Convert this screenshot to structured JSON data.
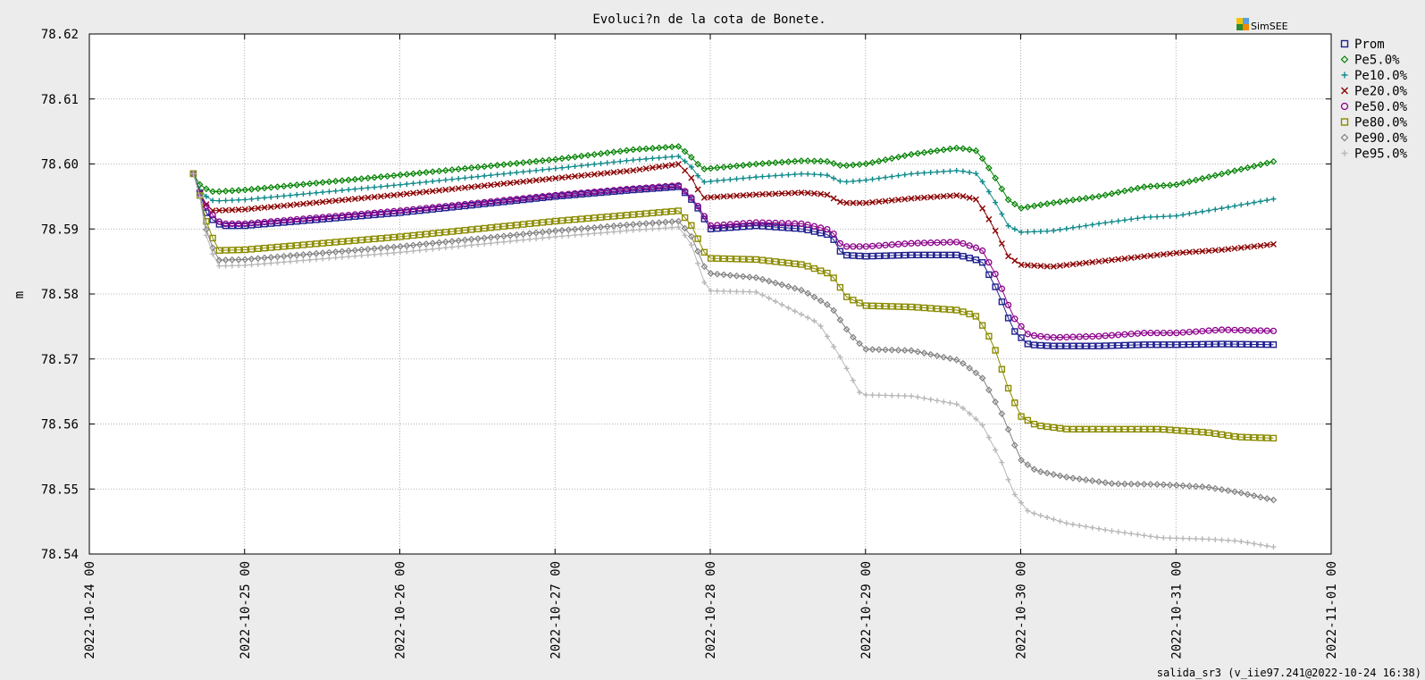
{
  "chart_data": {
    "type": "line",
    "title": "Evoluci?n de la cota de Bonete.",
    "ylabel": "m",
    "xlabel": "",
    "ylim": [
      78.54,
      78.62
    ],
    "yticks": [
      "78.62",
      "78.61",
      "78.60",
      "78.59",
      "78.58",
      "78.57",
      "78.56",
      "78.55",
      "78.54"
    ],
    "x_start": "2022-10-24 00",
    "x_ticks": [
      "2022-10-24 00",
      "2022-10-25 00",
      "2022-10-26 00",
      "2022-10-27 00",
      "2022-10-28 00",
      "2022-10-29 00",
      "2022-10-30 00",
      "2022-10-31 00",
      "2022-11-01 00"
    ],
    "xlim_days": [
      0,
      8
    ],
    "grid": true,
    "legend_position": "right",
    "brand": "SimSEE",
    "footer": "salida_sr3 (v_iie97.241@2022-10-24 16:38)",
    "series": [
      {
        "name": "Prom",
        "color": "#1f1f8f",
        "marker": "square",
        "points": [
          [
            0.67,
            78.5985
          ],
          [
            0.72,
            78.595
          ],
          [
            0.76,
            78.592
          ],
          [
            0.85,
            78.5905
          ],
          [
            1.0,
            78.5905
          ],
          [
            2.0,
            78.5925
          ],
          [
            3.0,
            78.595
          ],
          [
            3.5,
            78.596
          ],
          [
            3.8,
            78.5965
          ],
          [
            3.9,
            78.594
          ],
          [
            4.0,
            78.59
          ],
          [
            4.3,
            78.5905
          ],
          [
            4.6,
            78.59
          ],
          [
            4.78,
            78.589
          ],
          [
            4.85,
            78.586
          ],
          [
            5.0,
            78.5858
          ],
          [
            5.3,
            78.586
          ],
          [
            5.6,
            78.586
          ],
          [
            5.75,
            78.585
          ],
          [
            5.85,
            78.5805
          ],
          [
            5.95,
            78.5745
          ],
          [
            6.05,
            78.5722
          ],
          [
            6.2,
            78.572
          ],
          [
            6.5,
            78.572
          ],
          [
            6.8,
            78.5722
          ],
          [
            7.0,
            78.5722
          ],
          [
            7.3,
            78.5723
          ],
          [
            7.65,
            78.5722
          ]
        ]
      },
      {
        "name": "Pe5.0%",
        "color": "#008000",
        "marker": "diamond",
        "points": [
          [
            0.67,
            78.5985
          ],
          [
            0.72,
            78.5965
          ],
          [
            0.8,
            78.5957
          ],
          [
            1.0,
            78.596
          ],
          [
            2.0,
            78.5983
          ],
          [
            3.0,
            78.6007
          ],
          [
            3.5,
            78.6022
          ],
          [
            3.8,
            78.6027
          ],
          [
            3.88,
            78.601
          ],
          [
            3.95,
            78.5992
          ],
          [
            4.3,
            78.6
          ],
          [
            4.6,
            78.6005
          ],
          [
            4.75,
            78.6004
          ],
          [
            4.85,
            78.5997
          ],
          [
            5.0,
            78.6
          ],
          [
            5.3,
            78.6015
          ],
          [
            5.6,
            78.6025
          ],
          [
            5.72,
            78.602
          ],
          [
            5.82,
            78.5985
          ],
          [
            5.92,
            78.5945
          ],
          [
            6.0,
            78.5932
          ],
          [
            6.2,
            78.594
          ],
          [
            6.5,
            78.595
          ],
          [
            6.8,
            78.5965
          ],
          [
            7.0,
            78.5968
          ],
          [
            7.3,
            78.5985
          ],
          [
            7.65,
            78.6005
          ]
        ]
      },
      {
        "name": "Pe10.0%",
        "color": "#108a8a",
        "marker": "plus",
        "points": [
          [
            0.67,
            78.5985
          ],
          [
            0.72,
            78.5955
          ],
          [
            0.8,
            78.5943
          ],
          [
            1.0,
            78.5945
          ],
          [
            2.0,
            78.5968
          ],
          [
            3.0,
            78.5993
          ],
          [
            3.5,
            78.6006
          ],
          [
            3.8,
            78.6012
          ],
          [
            3.88,
            78.5995
          ],
          [
            3.95,
            78.5972
          ],
          [
            4.3,
            78.598
          ],
          [
            4.6,
            78.5985
          ],
          [
            4.75,
            78.5983
          ],
          [
            4.85,
            78.5972
          ],
          [
            5.0,
            78.5975
          ],
          [
            5.3,
            78.5985
          ],
          [
            5.6,
            78.599
          ],
          [
            5.72,
            78.5985
          ],
          [
            5.82,
            78.5948
          ],
          [
            5.92,
            78.5905
          ],
          [
            6.0,
            78.5895
          ],
          [
            6.2,
            78.5897
          ],
          [
            6.5,
            78.5908
          ],
          [
            6.8,
            78.5918
          ],
          [
            7.0,
            78.592
          ],
          [
            7.3,
            78.5932
          ],
          [
            7.65,
            78.5947
          ]
        ]
      },
      {
        "name": "Pe20.0%",
        "color": "#8b0000",
        "marker": "cross",
        "points": [
          [
            0.67,
            78.5985
          ],
          [
            0.72,
            78.595
          ],
          [
            0.78,
            78.5928
          ],
          [
            1.0,
            78.593
          ],
          [
            2.0,
            78.5953
          ],
          [
            3.0,
            78.5978
          ],
          [
            3.5,
            78.599
          ],
          [
            3.8,
            78.6
          ],
          [
            3.88,
            78.5978
          ],
          [
            3.95,
            78.5948
          ],
          [
            4.3,
            78.5953
          ],
          [
            4.6,
            78.5956
          ],
          [
            4.75,
            78.5953
          ],
          [
            4.85,
            78.594
          ],
          [
            5.0,
            78.594
          ],
          [
            5.3,
            78.5947
          ],
          [
            5.6,
            78.5952
          ],
          [
            5.72,
            78.5945
          ],
          [
            5.82,
            78.5905
          ],
          [
            5.92,
            78.5858
          ],
          [
            6.0,
            78.5845
          ],
          [
            6.2,
            78.5842
          ],
          [
            6.5,
            78.585
          ],
          [
            6.8,
            78.5858
          ],
          [
            7.0,
            78.5863
          ],
          [
            7.3,
            78.5868
          ],
          [
            7.65,
            78.5877
          ]
        ]
      },
      {
        "name": "Pe50.0%",
        "color": "#8b008b",
        "marker": "circle",
        "points": [
          [
            0.67,
            78.5985
          ],
          [
            0.72,
            78.5948
          ],
          [
            0.78,
            78.5925
          ],
          [
            0.85,
            78.5908
          ],
          [
            1.0,
            78.5908
          ],
          [
            2.0,
            78.5928
          ],
          [
            3.0,
            78.5952
          ],
          [
            3.5,
            78.5962
          ],
          [
            3.8,
            78.5967
          ],
          [
            3.9,
            78.5943
          ],
          [
            4.0,
            78.5905
          ],
          [
            4.3,
            78.591
          ],
          [
            4.6,
            78.5908
          ],
          [
            4.78,
            78.5898
          ],
          [
            4.85,
            78.5873
          ],
          [
            5.0,
            78.5873
          ],
          [
            5.3,
            78.5878
          ],
          [
            5.6,
            78.588
          ],
          [
            5.75,
            78.5868
          ],
          [
            5.85,
            78.5825
          ],
          [
            5.95,
            78.5765
          ],
          [
            6.05,
            78.5737
          ],
          [
            6.2,
            78.5733
          ],
          [
            6.5,
            78.5735
          ],
          [
            6.8,
            78.574
          ],
          [
            7.0,
            78.574
          ],
          [
            7.3,
            78.5745
          ],
          [
            7.65,
            78.5743
          ]
        ]
      },
      {
        "name": "Pe80.0%",
        "color": "#8b8b00",
        "marker": "square",
        "points": [
          [
            0.67,
            78.5985
          ],
          [
            0.72,
            78.5945
          ],
          [
            0.76,
            78.5905
          ],
          [
            0.83,
            78.5867
          ],
          [
            1.0,
            78.5868
          ],
          [
            2.0,
            78.5888
          ],
          [
            3.0,
            78.5912
          ],
          [
            3.5,
            78.5922
          ],
          [
            3.8,
            78.5928
          ],
          [
            3.88,
            78.5905
          ],
          [
            3.98,
            78.5855
          ],
          [
            4.3,
            78.5853
          ],
          [
            4.6,
            78.5845
          ],
          [
            4.78,
            78.583
          ],
          [
            4.88,
            78.5795
          ],
          [
            5.0,
            78.5782
          ],
          [
            5.3,
            78.578
          ],
          [
            5.6,
            78.5775
          ],
          [
            5.72,
            78.5765
          ],
          [
            5.82,
            78.5725
          ],
          [
            5.92,
            78.5655
          ],
          [
            6.0,
            78.5612
          ],
          [
            6.1,
            78.5598
          ],
          [
            6.3,
            78.5592
          ],
          [
            6.6,
            78.5592
          ],
          [
            6.9,
            78.5592
          ],
          [
            7.2,
            78.5587
          ],
          [
            7.4,
            78.558
          ],
          [
            7.65,
            78.5578
          ]
        ]
      },
      {
        "name": "Pe90.0%",
        "color": "#808080",
        "marker": "diamond",
        "points": [
          [
            0.67,
            78.5985
          ],
          [
            0.72,
            78.5945
          ],
          [
            0.76,
            78.589
          ],
          [
            0.83,
            78.5852
          ],
          [
            1.0,
            78.5853
          ],
          [
            2.0,
            78.5873
          ],
          [
            3.0,
            78.5897
          ],
          [
            3.5,
            78.5907
          ],
          [
            3.8,
            78.5912
          ],
          [
            3.88,
            78.5888
          ],
          [
            3.98,
            78.5832
          ],
          [
            4.3,
            78.5825
          ],
          [
            4.6,
            78.5805
          ],
          [
            4.78,
            78.578
          ],
          [
            4.9,
            78.5738
          ],
          [
            5.0,
            78.5715
          ],
          [
            5.3,
            78.5713
          ],
          [
            5.6,
            78.5698
          ],
          [
            5.75,
            78.5672
          ],
          [
            5.88,
            78.5615
          ],
          [
            6.0,
            78.5545
          ],
          [
            6.1,
            78.5528
          ],
          [
            6.3,
            78.5518
          ],
          [
            6.6,
            78.5508
          ],
          [
            6.9,
            78.5507
          ],
          [
            7.2,
            78.5503
          ],
          [
            7.4,
            78.5495
          ],
          [
            7.65,
            78.5482
          ]
        ]
      },
      {
        "name": "Pe95.0%",
        "color": "#b8b8b8",
        "marker": "plus",
        "points": [
          [
            0.67,
            78.5985
          ],
          [
            0.72,
            78.5942
          ],
          [
            0.76,
            78.588
          ],
          [
            0.83,
            78.5843
          ],
          [
            1.0,
            78.5844
          ],
          [
            2.0,
            78.5864
          ],
          [
            3.0,
            78.5888
          ],
          [
            3.5,
            78.5898
          ],
          [
            3.8,
            78.5903
          ],
          [
            3.88,
            78.5875
          ],
          [
            3.98,
            78.5805
          ],
          [
            4.3,
            78.5803
          ],
          [
            4.45,
            78.5785
          ],
          [
            4.7,
            78.5755
          ],
          [
            4.85,
            78.5698
          ],
          [
            4.97,
            78.5645
          ],
          [
            5.3,
            78.5643
          ],
          [
            5.6,
            78.563
          ],
          [
            5.75,
            78.56
          ],
          [
            5.88,
            78.554
          ],
          [
            5.95,
            78.5495
          ],
          [
            6.05,
            78.5465
          ],
          [
            6.3,
            78.5447
          ],
          [
            6.6,
            78.5435
          ],
          [
            6.9,
            78.5425
          ],
          [
            7.2,
            78.5423
          ],
          [
            7.4,
            78.542
          ],
          [
            7.65,
            78.541
          ]
        ]
      }
    ]
  }
}
